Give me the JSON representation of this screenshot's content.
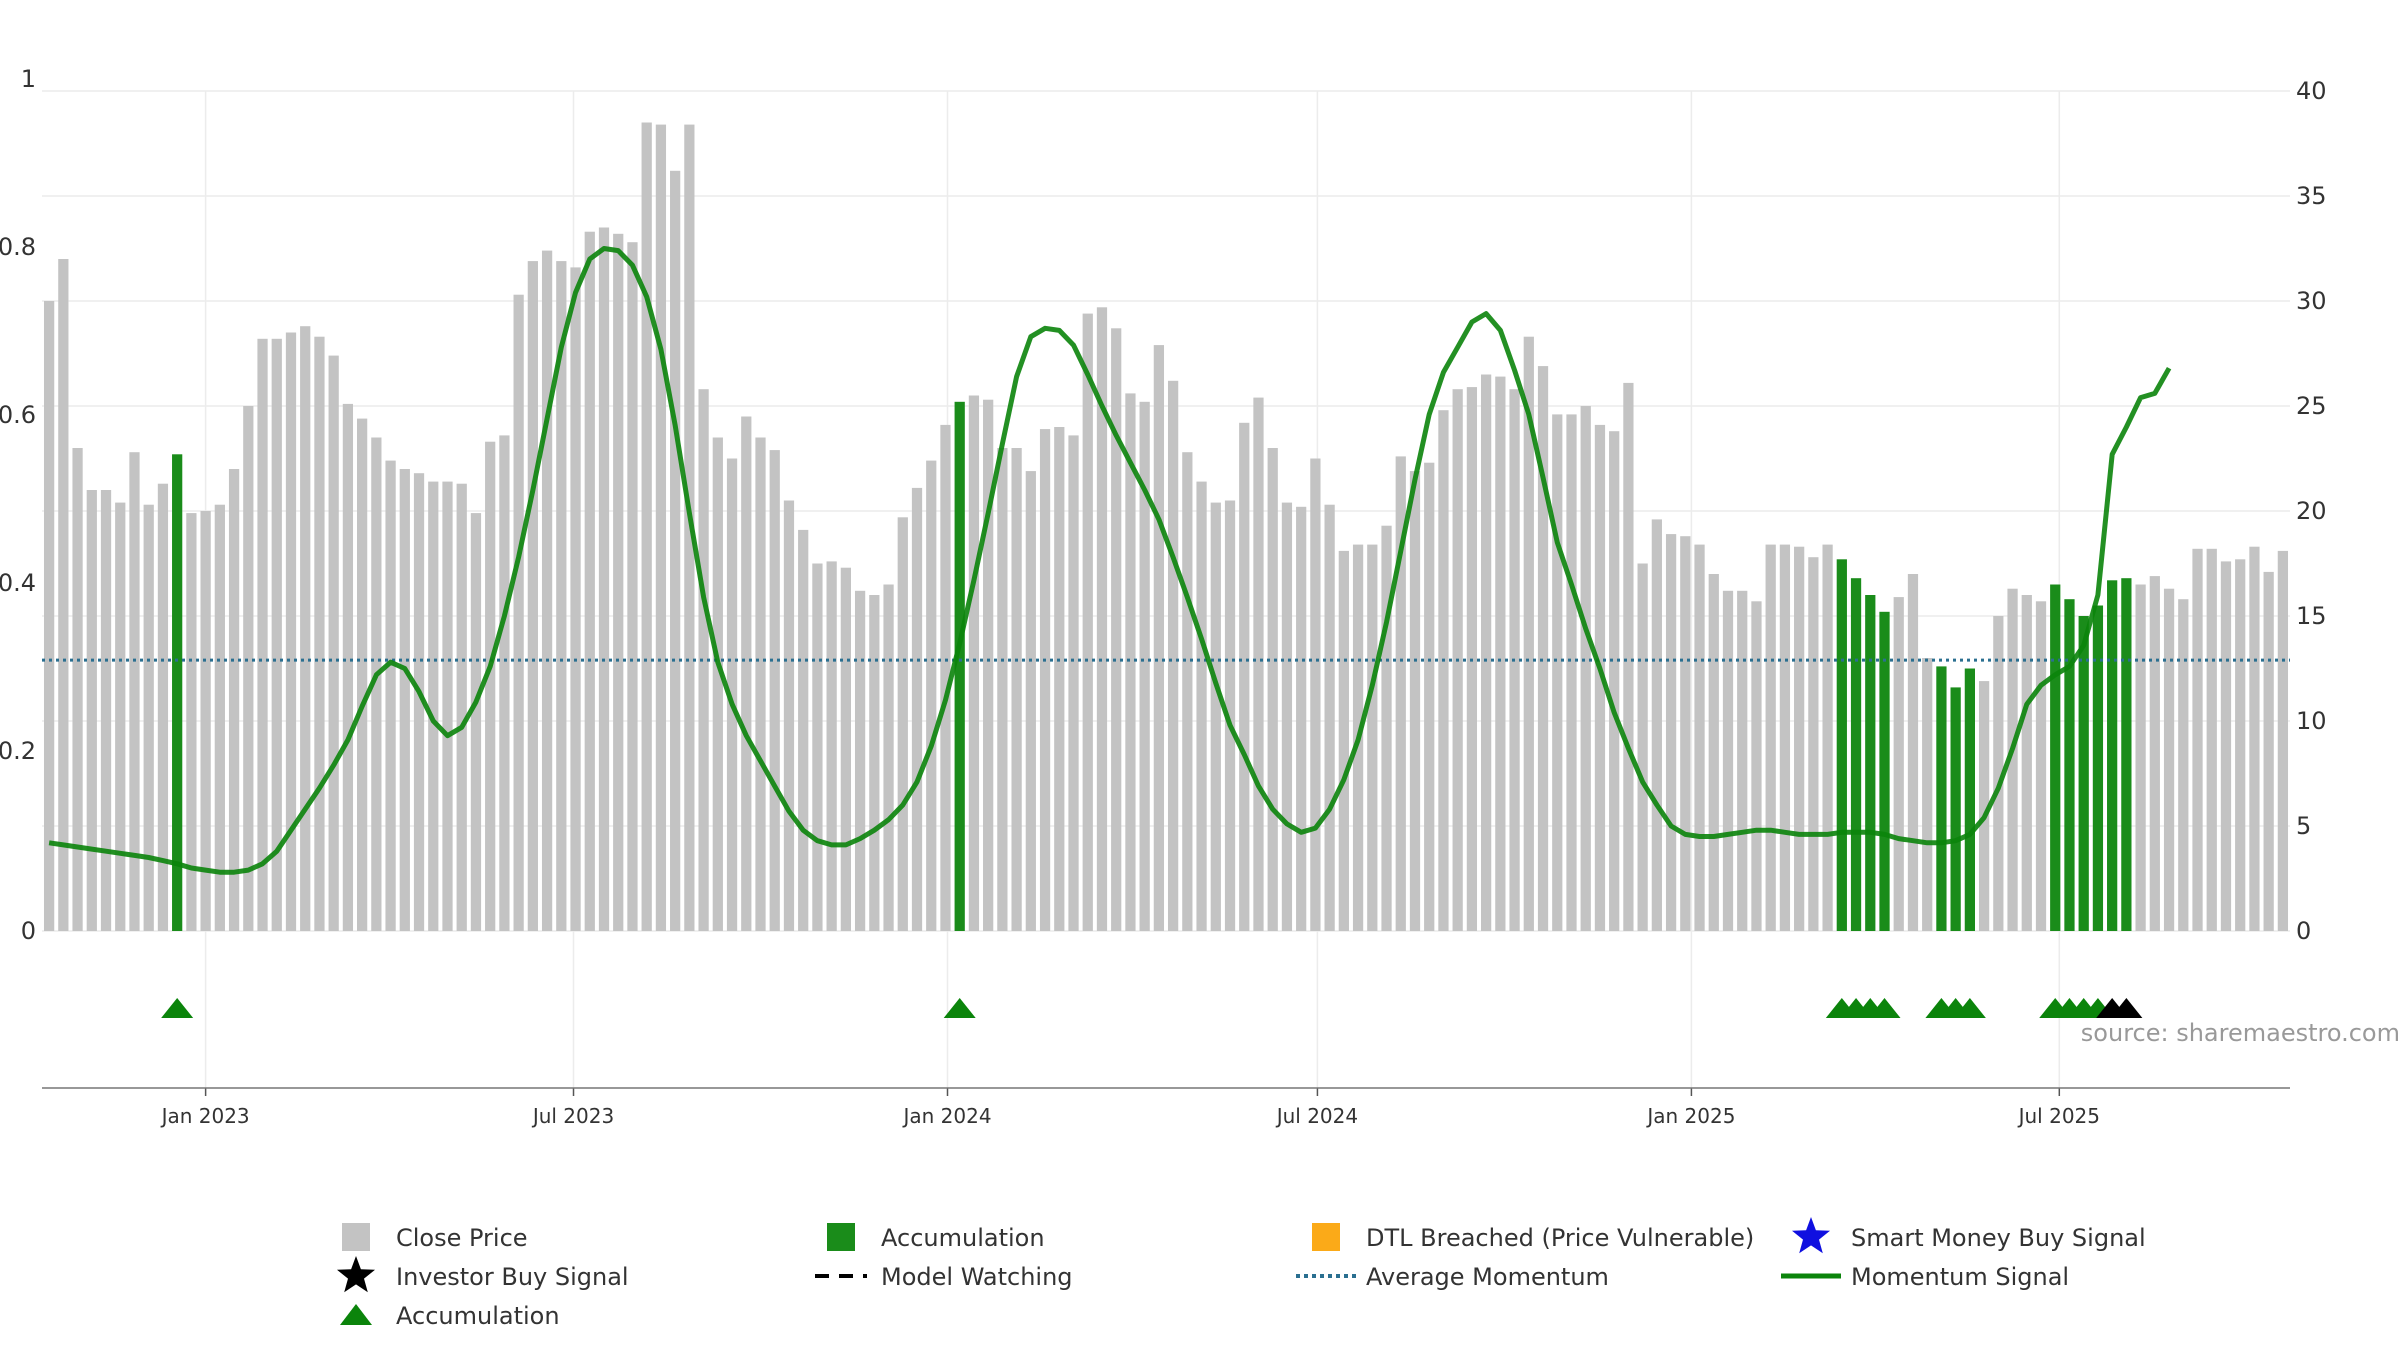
{
  "source": "source: sharemaestro.com",
  "chart_data": {
    "type": "bar",
    "x_start": "2022-10-16",
    "x_step_days": 7,
    "y_left_ticks": [
      "0",
      "0.2",
      "0.4",
      "0.6",
      "0.8",
      "1"
    ],
    "y_left_range": [
      0,
      1
    ],
    "y_right_ticks": [
      "0",
      "5",
      "10",
      "15",
      "20",
      "25",
      "30",
      "35",
      "40"
    ],
    "y_right_range": [
      0,
      40
    ],
    "x_ticks": [
      {
        "date": "2023-01-01",
        "label": "Jan 2023"
      },
      {
        "date": "2023-07-01",
        "label": "Jul 2023"
      },
      {
        "date": "2024-01-01",
        "label": "Jan 2024"
      },
      {
        "date": "2024-07-01",
        "label": "Jul 2024"
      },
      {
        "date": "2025-01-01",
        "label": "Jan 2025"
      },
      {
        "date": "2025-07-01",
        "label": "Jul 2025"
      }
    ],
    "grid": true,
    "close_price": [
      30.0,
      32.0,
      23.0,
      21.0,
      21.0,
      20.4,
      22.8,
      20.3,
      21.3,
      22.7,
      19.9,
      20.0,
      20.3,
      22.0,
      25.0,
      28.2,
      28.2,
      28.5,
      28.8,
      28.3,
      27.4,
      25.1,
      24.4,
      23.5,
      22.4,
      22.0,
      21.8,
      21.4,
      21.4,
      21.3,
      19.9,
      23.3,
      23.6,
      30.3,
      31.9,
      32.4,
      31.9,
      31.6,
      33.3,
      33.5,
      33.2,
      32.8,
      38.5,
      38.4,
      36.2,
      38.4,
      25.8,
      23.5,
      22.5,
      24.5,
      23.5,
      22.9,
      20.5,
      19.1,
      17.5,
      17.6,
      17.3,
      16.2,
      16.0,
      16.5,
      19.7,
      21.1,
      22.4,
      24.1,
      25.2,
      25.5,
      25.3,
      23.0,
      23.0,
      21.9,
      23.9,
      24.0,
      23.6,
      29.4,
      29.7,
      28.7,
      25.6,
      25.2,
      27.9,
      26.2,
      22.8,
      21.4,
      20.4,
      20.5,
      24.2,
      25.4,
      23.0,
      20.4,
      20.2,
      22.5,
      20.3,
      18.1,
      18.4,
      18.4,
      19.3,
      22.6,
      21.9,
      22.3,
      24.8,
      25.8,
      25.9,
      26.5,
      26.4,
      25.8,
      28.3,
      26.9,
      24.6,
      24.6,
      25.0,
      24.1,
      23.8,
      26.1,
      17.5,
      19.6,
      18.9,
      18.8,
      18.4,
      17.0,
      16.2,
      16.2,
      15.7,
      18.4,
      18.4,
      18.3,
      17.8,
      18.4,
      17.7,
      16.8,
      16.0,
      15.2,
      15.9,
      17.0,
      13.0,
      12.6,
      11.6,
      12.5,
      11.9,
      15.0,
      16.3,
      16.0,
      15.7,
      16.5,
      15.8,
      15.0,
      15.5,
      16.7,
      16.8,
      16.5,
      16.9,
      16.3,
      15.8,
      18.2,
      18.2,
      17.6,
      17.7,
      18.3,
      17.1,
      18.1
    ],
    "accumulation_bars": [
      9,
      64,
      126,
      127,
      128,
      129,
      133,
      134,
      135,
      141,
      142,
      143,
      144,
      145,
      146
    ],
    "momentum_signal": [
      4.2,
      4.1,
      4.0,
      3.9,
      3.8,
      3.7,
      3.6,
      3.5,
      3.35,
      3.2,
      3.0,
      2.9,
      2.8,
      2.8,
      2.9,
      3.2,
      3.8,
      4.8,
      5.8,
      6.8,
      7.9,
      9.1,
      10.7,
      12.2,
      12.8,
      12.5,
      11.4,
      10.0,
      9.3,
      9.7,
      10.9,
      12.6,
      15.0,
      17.8,
      21.0,
      24.4,
      27.8,
      30.4,
      32.0,
      32.5,
      32.4,
      31.7,
      30.2,
      27.7,
      24.1,
      19.9,
      15.9,
      12.8,
      10.8,
      9.3,
      8.1,
      6.9,
      5.7,
      4.8,
      4.3,
      4.1,
      4.1,
      4.4,
      4.8,
      5.3,
      6.0,
      7.1,
      8.8,
      11.0,
      13.7,
      16.7,
      19.9,
      23.2,
      26.4,
      28.3,
      28.7,
      28.6,
      27.9,
      26.5,
      25.0,
      23.6,
      22.3,
      21.0,
      19.6,
      17.8,
      15.9,
      13.9,
      11.8,
      9.8,
      8.4,
      6.9,
      5.8,
      5.1,
      4.7,
      4.9,
      5.8,
      7.2,
      9.1,
      11.7,
      14.7,
      18.1,
      21.5,
      24.6,
      26.6,
      27.8,
      29.0,
      29.4,
      28.6,
      26.7,
      24.6,
      21.6,
      18.5,
      16.5,
      14.4,
      12.5,
      10.4,
      8.7,
      7.1,
      6.0,
      5.0,
      4.6,
      4.5,
      4.5,
      4.6,
      4.7,
      4.8,
      4.8,
      4.7,
      4.6,
      4.6,
      4.6,
      4.7,
      4.7,
      4.7,
      4.6,
      4.4,
      4.3,
      4.2,
      4.2,
      4.3,
      4.6,
      5.4,
      6.8,
      8.7,
      10.8,
      11.7,
      12.2,
      12.6,
      13.6,
      16.0,
      22.7,
      24.0,
      25.4,
      25.6,
      26.8
    ],
    "momentum_signal_color": "#0b840b",
    "average_momentum": 12.9,
    "accumulation_markers": [
      9,
      64,
      126,
      127,
      128,
      129,
      133,
      134,
      135,
      141,
      142,
      143,
      144
    ],
    "investor_buy_markers": [
      145,
      146
    ],
    "legend": [
      {
        "label": "Close Price",
        "symbol": "gray-square"
      },
      {
        "label": "Accumulation",
        "symbol": "green-square"
      },
      {
        "label": "DTL Breached (Price Vulnerable)",
        "symbol": "orange-square"
      },
      {
        "label": "Smart Money Buy Signal",
        "symbol": "blue-star"
      },
      {
        "label": "Investor Buy Signal",
        "symbol": "black-star"
      },
      {
        "label": "Model Watching",
        "symbol": "black-dash"
      },
      {
        "label": "Average Momentum",
        "symbol": "blue-dotted-line"
      },
      {
        "label": "Momentum Signal",
        "symbol": "green-line"
      },
      {
        "label": "Accumulation",
        "symbol": "green-triangle"
      }
    ],
    "colors": {
      "close_price": "#c3c3c3",
      "accumulation": "#1a8c1a",
      "dtl_breached": "#fbaa18",
      "smart_money": "#1010e0",
      "investor": "#000000",
      "average_momentum": "#2a6f90",
      "momentum": "#0b840b",
      "triangle": "#0b840b"
    }
  }
}
